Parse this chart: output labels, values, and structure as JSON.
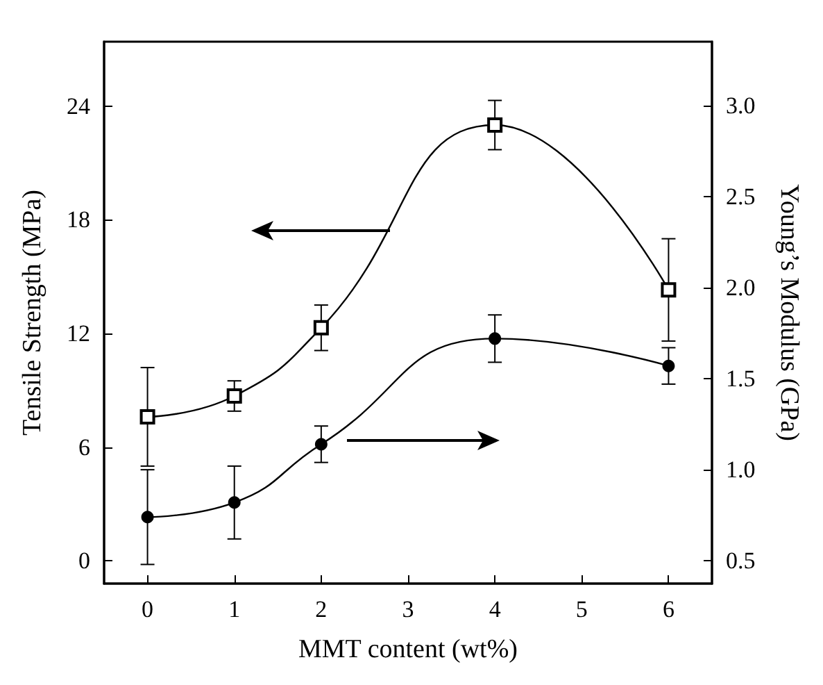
{
  "chart_data": {
    "type": "line",
    "xlabel": "MMT content (wt%)",
    "ylabel": "Tensile Strength (MPa)",
    "y2label": "Young’s Modulus (GPa)",
    "x": [
      0,
      1,
      2,
      4,
      6
    ],
    "xlim": [
      -0.5,
      6.5
    ],
    "xticks": [
      0,
      1,
      2,
      3,
      4,
      5,
      6
    ],
    "ylim": [
      -1.2,
      27.4
    ],
    "yticks": [
      0,
      6,
      12,
      18,
      24
    ],
    "y2lim": [
      0.375,
      3.35
    ],
    "y2ticks": [
      0.5,
      {
        "value": 1,
        "label": "1.0"
      },
      1.5,
      {
        "value": 2,
        "label": "2.0"
      },
      2.5,
      {
        "value": 3,
        "label": "3.0"
      }
    ],
    "grid": false,
    "line_style": "solid",
    "series": [
      {
        "color": "#000000",
        "marker": "square",
        "values": [
          7.6,
          8.7,
          12.3,
          23.0,
          14.3
        ],
        "errors": [
          2.6,
          0.8,
          1.2,
          1.3,
          2.7
        ]
      },
      {
        "color": "#000000",
        "marker": "circle",
        "axis": "y2",
        "values": [
          0.74,
          0.82,
          1.14,
          1.72,
          1.57
        ],
        "errors": [
          0.26,
          0.2,
          0.1,
          0.13,
          0.1
        ]
      }
    ]
  }
}
